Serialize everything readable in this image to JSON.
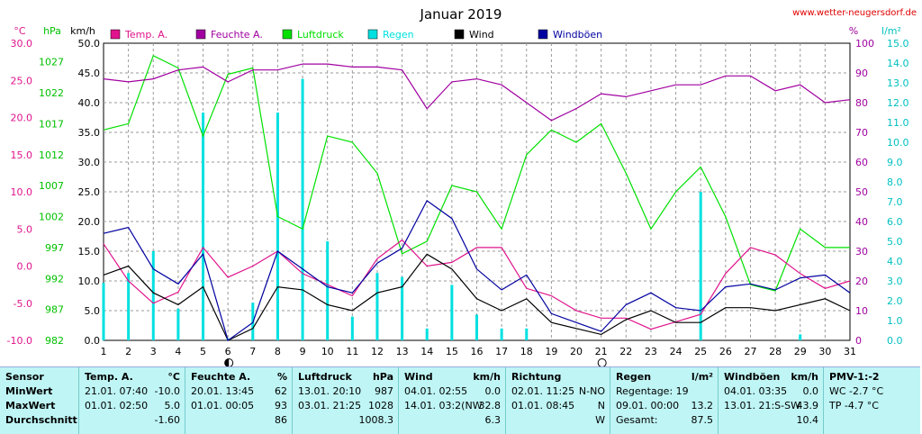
{
  "chart_data": {
    "type": "line",
    "title": "Januar 2019",
    "source": "www.wetter-neugersdorf.de",
    "x": [
      1,
      2,
      3,
      4,
      5,
      6,
      7,
      8,
      9,
      10,
      11,
      12,
      13,
      14,
      15,
      16,
      17,
      18,
      19,
      20,
      21,
      22,
      23,
      24,
      25,
      26,
      27,
      28,
      29,
      30,
      31
    ],
    "xlim": [
      1,
      31
    ],
    "axes": {
      "temp": {
        "unit": "°C",
        "ylim": [
          -10,
          30
        ],
        "ticks": [
          "30.0",
          "25.0",
          "20.0",
          "15.0",
          "10.0",
          "5.0",
          "0.0",
          "-5.0",
          "-10.0"
        ],
        "color": "#e0148c"
      },
      "pressure": {
        "unit": "hPa",
        "ylim": [
          982,
          1030
        ],
        "ticks": [
          "1027",
          "1022",
          "1017",
          "1012",
          "1007",
          "1002",
          "997",
          "992",
          "987",
          "982"
        ],
        "color": "#00c000"
      },
      "wind": {
        "unit": "km/h",
        "ylim": [
          0,
          50
        ],
        "ticks": [
          "50.0",
          "45.0",
          "40.0",
          "35.0",
          "30.0",
          "25.0",
          "20.0",
          "15.0",
          "10.0",
          "5.0",
          "0.0"
        ],
        "color": "#000000"
      },
      "humidity": {
        "unit": "%",
        "ylim": [
          0,
          100
        ],
        "ticks": [
          "100",
          "90",
          "80",
          "70",
          "60",
          "50",
          "40",
          "30",
          "20",
          "10",
          "0"
        ],
        "color": "#a000a0"
      },
      "rain": {
        "unit": "l/m²",
        "ylim": [
          0,
          15
        ],
        "ticks": [
          "15.0",
          "14.0",
          "13.0",
          "12.0",
          "11.0",
          "10.0",
          "9.0",
          "8.0",
          "7.0",
          "6.0",
          "5.0",
          "4.0",
          "3.0",
          "2.0",
          "1.0",
          "0.0"
        ],
        "color": "#00c0c0"
      }
    },
    "legend": [
      {
        "name": "Temp. A.",
        "color": "#e0148c"
      },
      {
        "name": "Feuchte A.",
        "color": "#a000a0"
      },
      {
        "name": "Luftdruck",
        "color": "#00e000"
      },
      {
        "name": "Regen",
        "color": "#00e0e0"
      },
      {
        "name": "Wind",
        "color": "#000000"
      },
      {
        "name": "Windböen",
        "color": "#0000a0"
      }
    ],
    "series": [
      {
        "name": "Temp. A.",
        "axis": "temp",
        "color": "#e0148c",
        "values": [
          3.0,
          -2.0,
          -5.0,
          -3.5,
          2.5,
          -1.5,
          0.0,
          2.0,
          -1.0,
          -2.5,
          -4.0,
          1.0,
          3.5,
          0.0,
          0.5,
          2.5,
          2.5,
          -3.0,
          -4.0,
          -6.0,
          -7.0,
          -7.0,
          -8.5,
          -7.5,
          -6.5,
          -1.0,
          2.5,
          1.5,
          -1.0,
          -3.0,
          -2.0
        ]
      },
      {
        "name": "Feuchte A.",
        "axis": "humidity",
        "color": "#a000a0",
        "values": [
          88,
          87,
          88,
          91,
          92,
          87,
          91,
          91,
          93,
          93,
          92,
          92,
          91,
          78,
          87,
          88,
          86,
          80,
          74,
          78,
          83,
          82,
          84,
          86,
          86,
          89,
          89,
          84,
          86,
          80,
          81
        ]
      },
      {
        "name": "Luftdruck",
        "axis": "pressure",
        "color": "#00e000",
        "values": [
          1016,
          1017,
          1028,
          1026,
          1015,
          1025,
          1026,
          1002,
          1000,
          1015,
          1014,
          1009,
          996,
          998,
          1007,
          1006,
          1000,
          1012,
          1016,
          1014,
          1017,
          1009,
          1000,
          1006,
          1010,
          1002,
          991,
          990,
          1000,
          997,
          997
        ]
      },
      {
        "name": "Wind",
        "axis": "wind",
        "color": "#000000",
        "values": [
          11,
          12.5,
          8,
          6,
          9,
          0,
          2,
          9,
          8.5,
          6,
          5,
          8,
          9,
          14.5,
          12,
          7,
          5,
          7,
          3,
          2,
          1,
          3.5,
          5,
          3,
          3,
          5.5,
          5.5,
          5,
          6,
          7,
          5
        ]
      },
      {
        "name": "Windböen",
        "axis": "wind",
        "color": "#0000a0",
        "values": [
          18,
          19,
          12,
          9.5,
          14.5,
          0,
          3,
          15,
          12,
          9,
          8,
          13,
          15.5,
          23.5,
          20.5,
          12,
          8.5,
          11,
          4.5,
          3,
          1.5,
          6,
          8,
          5.5,
          5,
          9,
          9.5,
          8.5,
          10.5,
          11,
          8
        ]
      },
      {
        "name": "Regen",
        "axis": "rain",
        "type": "bar",
        "color": "#00e0e0",
        "values": [
          2.9,
          3.4,
          4.5,
          1.6,
          11.5,
          0.1,
          1.9,
          11.5,
          13.2,
          5.0,
          1.2,
          3.4,
          3.2,
          0.6,
          2.8,
          1.3,
          0.6,
          0.6,
          0,
          0,
          0,
          0,
          0,
          0,
          7.5,
          0,
          0,
          0,
          0.3,
          0,
          0
        ]
      }
    ],
    "markers": [
      {
        "x": 6,
        "symbol": "new-moon"
      },
      {
        "x": 21,
        "symbol": "full-moon"
      }
    ],
    "grid": true
  },
  "stats": {
    "columns": [
      {
        "header": [
          "Sensor",
          "",
          ""
        ],
        "rows": [
          [
            "MinWert",
            "",
            ""
          ],
          [
            "MaxWert",
            "",
            ""
          ],
          [
            "Durchschnitt",
            "",
            ""
          ]
        ]
      },
      {
        "header": [
          "Temp. A.",
          "°C",
          ""
        ],
        "rows": [
          [
            "21.01.  07:40",
            "-10.0",
            ""
          ],
          [
            "01.01.  02:50",
            "5.0",
            ""
          ],
          [
            "",
            "-1.60",
            ""
          ]
        ]
      },
      {
        "header": [
          "Feuchte A.",
          "%",
          ""
        ],
        "rows": [
          [
            "20.01.  13:45",
            "62",
            ""
          ],
          [
            "01.01.  00:05",
            "93",
            ""
          ],
          [
            "",
            "86",
            ""
          ]
        ]
      },
      {
        "header": [
          "Luftdruck",
          "hPa",
          ""
        ],
        "rows": [
          [
            "13.01.  20:10",
            "987",
            ""
          ],
          [
            "03.01.  21:25",
            "1028",
            ""
          ],
          [
            "",
            "1008.3",
            ""
          ]
        ]
      },
      {
        "header": [
          "Wind",
          "km/h",
          ""
        ],
        "rows": [
          [
            "04.01.  02:55",
            "0.0",
            ""
          ],
          [
            "14.01.  03:2(NW",
            "32.8",
            ""
          ],
          [
            "",
            "6.3",
            ""
          ]
        ]
      },
      {
        "header": [
          "Richtung",
          "",
          ""
        ],
        "rows": [
          [
            "02.01.  11:25",
            "N-NO",
            ""
          ],
          [
            "01.01.  08:45",
            "N",
            ""
          ],
          [
            "",
            "W",
            ""
          ]
        ]
      },
      {
        "header": [
          "Regen",
          "l/m²",
          ""
        ],
        "rows": [
          [
            "Regentage: 19",
            "",
            ""
          ],
          [
            "09.01.  00:00",
            "13.2",
            ""
          ],
          [
            "Gesamt:",
            "87.5",
            ""
          ]
        ]
      },
      {
        "header": [
          "Windböen",
          "km/h",
          ""
        ],
        "rows": [
          [
            "04.01.  03:35",
            "0.0",
            ""
          ],
          [
            "13.01.  21:S-SW",
            "43.9",
            ""
          ],
          [
            "",
            "10.4",
            ""
          ]
        ]
      },
      {
        "header": [
          "PMV-1:-2",
          "",
          ""
        ],
        "rows": [
          [
            "WC -2.7 °C",
            "",
            ""
          ],
          [
            "TP -4.7 °C",
            "",
            ""
          ],
          [
            "",
            "",
            ""
          ]
        ]
      }
    ]
  }
}
